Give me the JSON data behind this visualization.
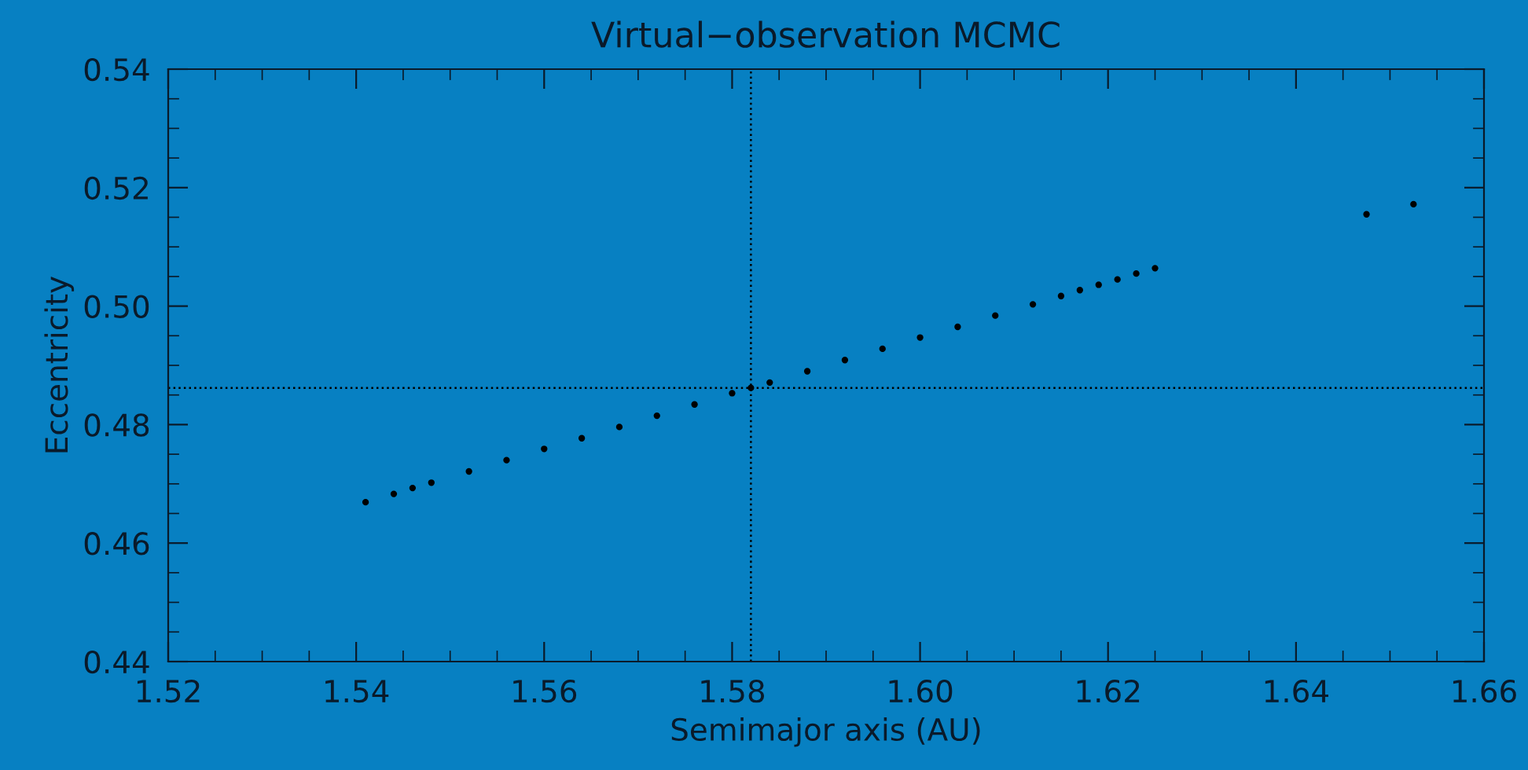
{
  "chart_data": {
    "type": "scatter",
    "title": "Virtual−observation MCMC",
    "xlabel": "Semimajor axis (AU)",
    "ylabel": "Eccentricity",
    "series": [
      {
        "color": "#000000",
        "x": [
          1.541,
          1.544,
          1.546,
          1.548,
          1.552,
          1.556,
          1.56,
          1.564,
          1.568,
          1.572,
          1.576,
          1.58,
          1.582,
          1.584,
          1.588,
          1.592,
          1.596,
          1.6,
          1.604,
          1.608,
          1.612,
          1.615,
          1.617,
          1.619,
          1.621,
          1.623,
          1.625,
          1.6475,
          1.6525
        ],
        "values": [
          0.4669,
          0.4683,
          0.4693,
          0.4702,
          0.4721,
          0.474,
          0.4759,
          0.4777,
          0.4796,
          0.4815,
          0.4834,
          0.4853,
          0.4862,
          0.4871,
          0.489,
          0.4909,
          0.4928,
          0.4947,
          0.4965,
          0.4984,
          0.5003,
          0.5017,
          0.5027,
          0.5036,
          0.5045,
          0.5055,
          0.5064,
          0.5155,
          0.5172
        ]
      }
    ],
    "ref_lines": [
      {
        "axis": "x",
        "value": 1.582,
        "color": "#000000",
        "line_style": "dotted"
      },
      {
        "axis": "y",
        "value": 0.4862,
        "color": "#000000",
        "line_style": "dotted"
      }
    ],
    "xlim": [
      1.52,
      1.66
    ],
    "xticks": [
      {
        "value": 1.52,
        "label": "1.52"
      },
      {
        "value": 1.54,
        "label": "1.54"
      },
      {
        "value": 1.56,
        "label": "1.56"
      },
      {
        "value": 1.58,
        "label": "1.58"
      },
      {
        "value": 1.6,
        "label": "1.60"
      },
      {
        "value": 1.62,
        "label": "1.62"
      },
      {
        "value": 1.64,
        "label": "1.64"
      },
      {
        "value": 1.66,
        "label": "1.66"
      }
    ],
    "ylim": [
      0.44,
      0.54
    ],
    "yticks": [
      {
        "value": 0.44,
        "label": "0.44"
      },
      {
        "value": 0.46,
        "label": "0.46"
      },
      {
        "value": 0.48,
        "label": "0.48"
      },
      {
        "value": 0.5,
        "label": "0.50"
      },
      {
        "value": 0.52,
        "label": "0.52"
      },
      {
        "value": 0.54,
        "label": "0.54"
      }
    ],
    "marker": "circle",
    "grid": false,
    "legend": false
  }
}
